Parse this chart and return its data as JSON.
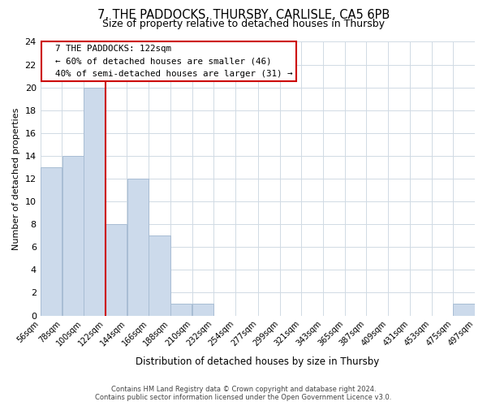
{
  "title": "7, THE PADDOCKS, THURSBY, CARLISLE, CA5 6PB",
  "subtitle": "Size of property relative to detached houses in Thursby",
  "xlabel": "Distribution of detached houses by size in Thursby",
  "ylabel": "Number of detached properties",
  "bar_color": "#ccdaeb",
  "bar_edge_color": "#a8bdd4",
  "vline_color": "#cc0000",
  "vline_x": 122,
  "annotation_title": "7 THE PADDOCKS: 122sqm",
  "annotation_line1": "← 60% of detached houses are smaller (46)",
  "annotation_line2": "40% of semi-detached houses are larger (31) →",
  "bin_edges": [
    56,
    78,
    100,
    122,
    144,
    166,
    188,
    210,
    232,
    254,
    277,
    299,
    321,
    343,
    365,
    387,
    409,
    431,
    453,
    475,
    497
  ],
  "bin_counts": [
    13,
    14,
    20,
    8,
    12,
    7,
    1,
    1,
    0,
    0,
    0,
    0,
    0,
    0,
    0,
    0,
    0,
    0,
    0,
    1
  ],
  "ylim": [
    0,
    24
  ],
  "yticks": [
    0,
    2,
    4,
    6,
    8,
    10,
    12,
    14,
    16,
    18,
    20,
    22,
    24
  ],
  "footer_line1": "Contains HM Land Registry data © Crown copyright and database right 2024.",
  "footer_line2": "Contains public sector information licensed under the Open Government Licence v3.0.",
  "bg_color": "#ffffff",
  "grid_color": "#d0dae4"
}
